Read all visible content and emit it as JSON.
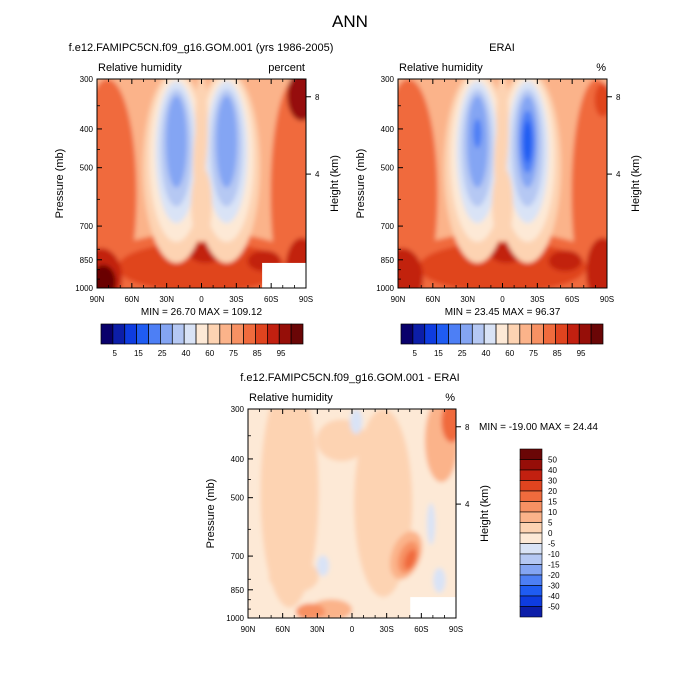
{
  "page": {
    "title": "ANN"
  },
  "colors": {
    "levels_main": [
      "#08006b",
      "#0c1ea8",
      "#0e3ce0",
      "#1f5cf2",
      "#4d7ff5",
      "#84a5f3",
      "#b5c8f3",
      "#d9e3f6",
      "#fde9d6",
      "#fdd3b2",
      "#fbb38a",
      "#f79163",
      "#f06b3d",
      "#e0441f",
      "#c22010",
      "#960e08",
      "#6a0606"
    ],
    "levels_diff": [
      "#08006b",
      "#0c1ea8",
      "#0e3ce0",
      "#1f5cf2",
      "#4d7ff5",
      "#84a5f3",
      "#b5c8f3",
      "#d9e3f6",
      "#fde9d6",
      "#fdd3b2",
      "#fbb38a",
      "#f79163",
      "#f06b3d",
      "#e0441f",
      "#c22010",
      "#960e08",
      "#6a0606"
    ]
  },
  "chart_data": [
    {
      "id": "model",
      "type": "contour",
      "title": "f.e12.FAMIPC5CN.f09_g16.GOM.001 (yrs 1986-2005)",
      "left_label": "Relative humidity",
      "right_label": "percent",
      "ylabel": "Pressure (mb)",
      "y2label": "Height (km)",
      "x_ticks": [
        "90N",
        "60N",
        "30N",
        "0",
        "30S",
        "60S",
        "90S"
      ],
      "x_values": [
        90,
        60,
        30,
        0,
        -30,
        -60,
        -90
      ],
      "y_ticks": [
        "300",
        "400",
        "500",
        "700",
        "850",
        "1000"
      ],
      "y_values": [
        300,
        400,
        500,
        700,
        850,
        1000
      ],
      "y2_ticks": [
        "8",
        "4"
      ],
      "y2_values": [
        8,
        4
      ],
      "ylim": [
        300,
        1000
      ],
      "stats": "MIN =  26.70  MAX = 109.12",
      "min": 26.7,
      "max": 109.12
    },
    {
      "id": "obs",
      "type": "contour",
      "title": "ERAI",
      "left_label": "Relative humidity",
      "right_label": "%",
      "ylabel": "Pressure (mb)",
      "y2label": "Height (km)",
      "x_ticks": [
        "90N",
        "60N",
        "30N",
        "0",
        "30S",
        "60S",
        "90S"
      ],
      "x_values": [
        90,
        60,
        30,
        0,
        -30,
        -60,
        -90
      ],
      "y_ticks": [
        "300",
        "400",
        "500",
        "700",
        "850",
        "1000"
      ],
      "y_values": [
        300,
        400,
        500,
        700,
        850,
        1000
      ],
      "y2_ticks": [
        "8",
        "4"
      ],
      "y2_values": [
        8,
        4
      ],
      "ylim": [
        300,
        1000
      ],
      "stats": "MIN =  23.45  MAX =  96.37",
      "min": 23.45,
      "max": 96.37
    },
    {
      "id": "diff",
      "type": "contour",
      "title": "f.e12.FAMIPC5CN.f09_g16.GOM.001 - ERAI",
      "left_label": "Relative humidity",
      "right_label": "%",
      "ylabel": "Pressure (mb)",
      "y2label": "Height (km)",
      "x_ticks": [
        "90N",
        "60N",
        "30N",
        "0",
        "30S",
        "60S",
        "90S"
      ],
      "x_values": [
        90,
        60,
        30,
        0,
        -30,
        -60,
        -90
      ],
      "y_ticks": [
        "300",
        "400",
        "500",
        "700",
        "850",
        "1000"
      ],
      "y_values": [
        300,
        400,
        500,
        700,
        850,
        1000
      ],
      "y2_ticks": [
        "8",
        "4"
      ],
      "y2_values": [
        8,
        4
      ],
      "ylim": [
        300,
        1000
      ],
      "stats": "MIN = -19.00  MAX =  24.44",
      "min": -19.0,
      "max": 24.44
    }
  ],
  "colorbars": {
    "main": {
      "labels": [
        "5",
        "15",
        "25",
        "40",
        "60",
        "75",
        "85",
        "95"
      ],
      "levels": [
        5,
        10,
        15,
        20,
        25,
        30,
        40,
        50,
        60,
        70,
        75,
        80,
        85,
        90,
        95,
        100
      ]
    },
    "diff": {
      "labels": [
        "50",
        "40",
        "30",
        "20",
        "15",
        "10",
        "5",
        "0",
        "-5",
        "-10",
        "-15",
        "-20",
        "-30",
        "-40",
        "-50"
      ],
      "levels": [
        50,
        40,
        30,
        20,
        15,
        10,
        5,
        0,
        -5,
        -10,
        -15,
        -20,
        -30,
        -40,
        -50
      ]
    }
  }
}
